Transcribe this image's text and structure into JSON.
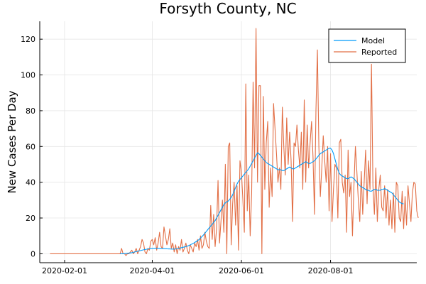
{
  "chart_data": {
    "type": "line",
    "title": "Forsyth County, NC",
    "xlabel": "",
    "ylabel": "New Cases Per Day",
    "x_start": "2020-01-22",
    "xlim": [
      "2020-01-15",
      "2020-09-29"
    ],
    "ylim": [
      -5,
      130
    ],
    "x_ticks": [
      "2020-02-01",
      "2020-04-01",
      "2020-06-01",
      "2020-08-01"
    ],
    "y_ticks": [
      0,
      20,
      40,
      60,
      80,
      100,
      120
    ],
    "grid": true,
    "legend_position": "top-right",
    "series": [
      {
        "name": "Model",
        "color": "#009af9",
        "start": "2020-03-10",
        "values": [
          0,
          0,
          0,
          0.1,
          0.2,
          0.3,
          0.4,
          0.5,
          0.6,
          0.8,
          1,
          1.2,
          1.4,
          1.6,
          1.8,
          2,
          2.2,
          2.4,
          2.5,
          2.7,
          2.8,
          2.9,
          3,
          3,
          3.1,
          3.1,
          3.1,
          3,
          3,
          2.9,
          2.9,
          2.8,
          2.8,
          2.7,
          2.7,
          2.6,
          2.6,
          2.6,
          2.7,
          2.8,
          3,
          3.2,
          3.4,
          3.6,
          3.8,
          4,
          4.3,
          4.6,
          5,
          5.4,
          5.8,
          6.3,
          6.8,
          7.3,
          8,
          8.8,
          9.6,
          10.5,
          11.5,
          12.5,
          13.5,
          14.5,
          15.5,
          16.5,
          17.5,
          18.5,
          20,
          21.5,
          23,
          24.5,
          26,
          27.5,
          28.5,
          29,
          29.5,
          30.5,
          31.5,
          33,
          35,
          37,
          39,
          40.5,
          41.5,
          42.5,
          43.5,
          44.5,
          45.5,
          46.5,
          47.5,
          49,
          50.5,
          52,
          53.5,
          55,
          56.5,
          56,
          55,
          54,
          53,
          52,
          51,
          50.5,
          50,
          49.5,
          49,
          48.5,
          48,
          47.5,
          47,
          47,
          47,
          46.5,
          46.5,
          47,
          47.5,
          48,
          48.5,
          48,
          47.5,
          47.5,
          48,
          48.5,
          49,
          49.5,
          50,
          50.5,
          51,
          51.5,
          51,
          50.5,
          50.5,
          51,
          51.5,
          52,
          53,
          54,
          55,
          56,
          56.5,
          57,
          57.5,
          58,
          58.5,
          59,
          59,
          58,
          56,
          53,
          50,
          47,
          45,
          44,
          43.5,
          43,
          42.5,
          42,
          42,
          42.5,
          43,
          42.5,
          42,
          41,
          40,
          39,
          38,
          37.5,
          37,
          36.5,
          36,
          35.5,
          35.5,
          35,
          35,
          35.5,
          36,
          36,
          35.5,
          35.5,
          35.5,
          36,
          36,
          36.5,
          36,
          35.5,
          35,
          34.5,
          34,
          33,
          32,
          31,
          30,
          29,
          28.5,
          28,
          28
        ]
      },
      {
        "name": "Reported",
        "color": "#e26f46",
        "start": "2020-01-22",
        "values": [
          0,
          0,
          0,
          0,
          0,
          0,
          0,
          0,
          0,
          0,
          0,
          0,
          0,
          0,
          0,
          0,
          0,
          0,
          0,
          0,
          0,
          0,
          0,
          0,
          0,
          0,
          0,
          0,
          0,
          0,
          0,
          0,
          0,
          0,
          0,
          0,
          0,
          0,
          0,
          0,
          0,
          0,
          0,
          0,
          0,
          0,
          0,
          0,
          0,
          3,
          0,
          0,
          -1,
          0,
          0,
          1,
          2,
          0,
          1,
          3,
          0,
          2,
          4,
          8,
          6,
          1,
          0,
          3,
          2,
          7,
          8,
          5,
          9,
          2,
          6,
          12,
          4,
          3,
          15,
          10,
          5,
          8,
          14,
          3,
          6,
          1,
          5,
          0,
          4,
          2,
          8,
          1,
          3,
          6,
          2,
          0,
          5,
          3,
          1,
          6,
          4,
          8,
          2,
          10,
          3,
          5,
          12,
          7,
          4,
          3,
          27,
          8,
          22,
          4,
          14,
          41,
          6,
          18,
          30,
          12,
          50,
          0,
          60,
          62,
          5,
          28,
          40,
          16,
          38,
          2,
          52,
          46,
          30,
          12,
          95,
          24,
          44,
          10,
          34,
          96,
          48,
          126,
          40,
          94,
          94,
          0,
          88,
          36,
          62,
          74,
          26,
          48,
          32,
          84,
          70,
          56,
          40,
          48,
          36,
          82,
          60,
          44,
          76,
          50,
          68,
          52,
          18,
          62,
          60,
          72,
          58,
          48,
          68,
          36,
          86,
          40,
          72,
          48,
          62,
          74,
          54,
          22,
          80,
          114,
          60,
          32,
          48,
          66,
          52,
          40,
          60,
          24,
          56,
          18,
          36,
          50,
          48,
          20,
          62,
          64,
          40,
          34,
          44,
          12,
          58,
          32,
          40,
          10,
          38,
          60,
          46,
          30,
          18,
          46,
          22,
          40,
          58,
          28,
          52,
          36,
          106,
          38,
          22,
          48,
          18,
          36,
          44,
          26,
          24,
          38,
          20,
          36,
          16,
          30,
          14,
          34,
          12,
          40,
          38,
          20,
          18,
          35,
          14,
          32,
          16,
          38,
          28,
          18,
          34,
          40,
          39,
          24,
          20
        ]
      }
    ]
  }
}
